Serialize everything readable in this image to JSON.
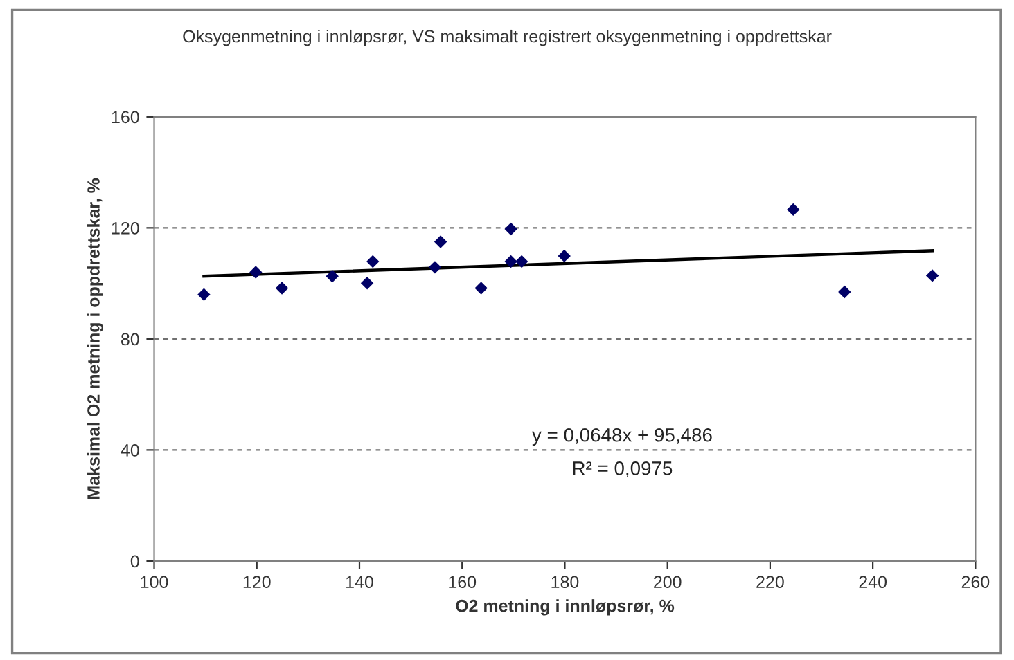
{
  "chart_data": {
    "type": "scatter",
    "title": "Oksygenmetning i innløpsrør, VS maksimalt registrert oksygenmetning i oppdrettskar",
    "xlabel": "O2 metning i innløpsrør, %",
    "ylabel": "Maksimal O2 metning i oppdrettskar, %",
    "series": [
      {
        "color": "#000066",
        "marker": "diamond",
        "x": [
          109.7,
          119.8,
          124.9,
          134.7,
          141.5,
          142.6,
          154.7,
          155.8,
          163.7,
          169.5,
          169.5,
          171.6,
          179.9,
          224.5,
          234.5,
          251.6
        ],
        "values": [
          96,
          104,
          98.3,
          102.6,
          100.1,
          107.9,
          105.8,
          115,
          98.3,
          119.6,
          107.9,
          107.9,
          109.9,
          126.6,
          96.9,
          102.8
        ]
      },
      {
        "type": "line",
        "color": "#000000",
        "line_style": "solid",
        "x": [
          109.7,
          251.6
        ],
        "values": [
          102.6,
          111.8
        ]
      }
    ],
    "annotations": [
      "y = 0,0648x + 95,486",
      "R² = 0,0975"
    ],
    "xlim": [
      100,
      260
    ],
    "xticks": [
      100,
      120,
      140,
      160,
      180,
      200,
      220,
      240,
      260
    ],
    "ylim": [
      0,
      160
    ],
    "yticks": [
      0,
      40,
      80,
      120,
      160
    ],
    "grid": "y"
  }
}
